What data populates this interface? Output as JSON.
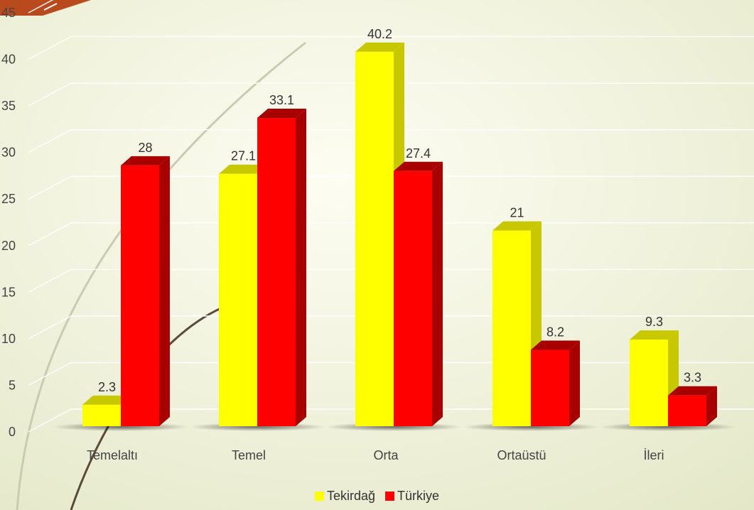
{
  "chart_data": {
    "type": "bar",
    "title": "",
    "xlabel": "",
    "ylabel": "",
    "categories": [
      "Temelaltı",
      "Temel",
      "Orta",
      "Ortaüstü",
      "İleri"
    ],
    "series": [
      {
        "name": "Tekirdağ",
        "values": [
          2.3,
          27.1,
          40.2,
          21,
          9.3
        ],
        "color": "#FFFF00",
        "side_color": "#C8C800"
      },
      {
        "name": "Türkiye",
        "values": [
          28,
          33.1,
          27.4,
          8.2,
          3.3
        ],
        "color": "#FF0000",
        "side_color": "#A80000"
      }
    ],
    "ylim": [
      0,
      45
    ],
    "yticks": [
      0,
      5,
      10,
      15,
      20,
      25,
      30,
      35,
      40,
      45
    ],
    "grid": true,
    "legend_position": "bottom",
    "style": "3d-clustered-column"
  },
  "theme": {
    "background": "#EEF0D8",
    "accent_banner": "#B84A1E",
    "gridline": "#FFFFFF"
  }
}
